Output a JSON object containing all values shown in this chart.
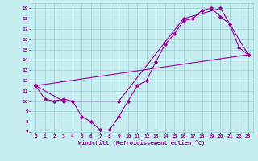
{
  "xlabel": "Windchill (Refroidissement éolien,°C)",
  "bg_color": "#c6eef0",
  "grid_color": "#9fcdd4",
  "line_color": "#990099",
  "xlim": [
    -0.5,
    23.5
  ],
  "ylim": [
    7,
    19.5
  ],
  "xticks": [
    0,
    1,
    2,
    3,
    4,
    5,
    6,
    7,
    8,
    9,
    10,
    11,
    12,
    13,
    14,
    15,
    16,
    17,
    18,
    19,
    20,
    21,
    22,
    23
  ],
  "yticks": [
    7,
    8,
    9,
    10,
    11,
    12,
    13,
    14,
    15,
    16,
    17,
    18,
    19
  ],
  "line1_x": [
    0,
    1,
    2,
    3,
    4,
    5,
    6,
    7,
    8,
    9,
    10,
    11,
    12,
    13,
    14,
    15,
    16,
    17,
    18,
    19,
    20,
    21,
    22,
    23
  ],
  "line1_y": [
    11.5,
    10.2,
    10.0,
    10.2,
    10.0,
    8.5,
    8.0,
    7.2,
    7.2,
    8.5,
    10.0,
    11.5,
    12.0,
    13.8,
    15.5,
    16.5,
    17.8,
    18.0,
    18.8,
    19.0,
    18.2,
    17.5,
    15.2,
    14.5
  ],
  "line2_x": [
    0,
    3,
    9,
    16,
    20,
    23
  ],
  "line2_y": [
    11.5,
    10.0,
    10.0,
    18.0,
    19.0,
    14.5
  ],
  "line3_x": [
    0,
    23
  ],
  "line3_y": [
    11.5,
    14.5
  ],
  "tick_fontsize": 4.5,
  "xlabel_fontsize": 5.0,
  "marker_size": 1.8,
  "line_width": 0.8
}
